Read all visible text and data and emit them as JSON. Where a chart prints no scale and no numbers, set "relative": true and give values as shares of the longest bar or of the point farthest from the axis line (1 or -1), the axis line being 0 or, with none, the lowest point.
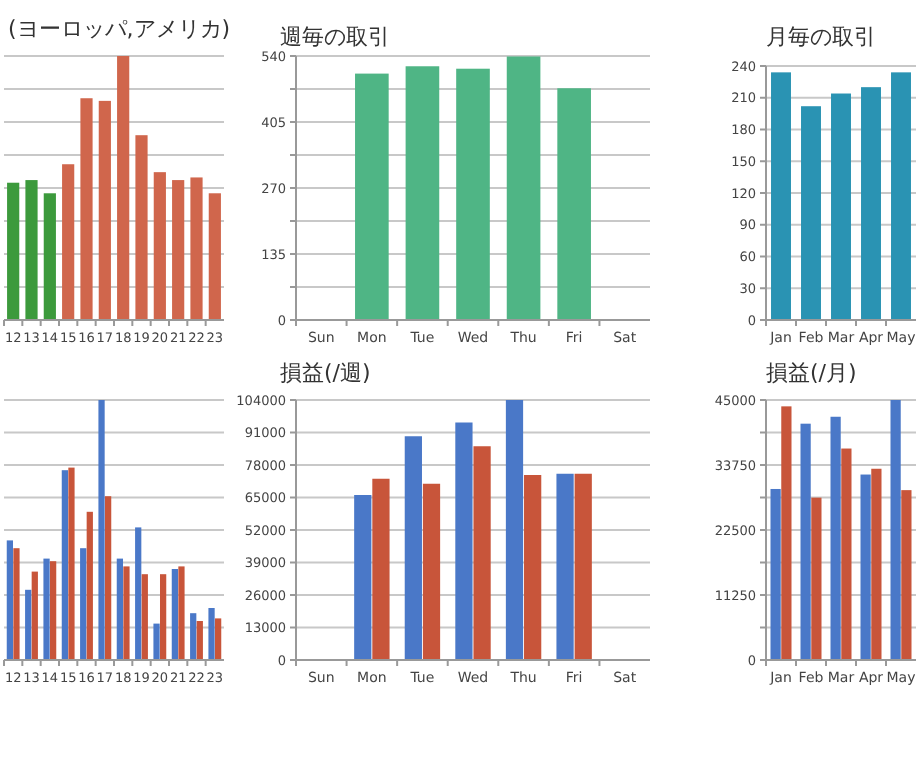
{
  "chart_data": [
    {
      "type": "bar",
      "title": "(ヨーロッパ,アメリカ)",
      "relative": true,
      "grid": true,
      "categories": [
        "12",
        "13",
        "14",
        "15",
        "16",
        "17",
        "18",
        "19",
        "20",
        "21",
        "22",
        "23"
      ],
      "values": [
        0.52,
        0.53,
        0.48,
        0.59,
        0.84,
        0.83,
        1,
        0.7,
        0.56,
        0.53,
        0.54,
        0.48
      ],
      "colors": [
        "#3c9a3c",
        "#3c9a3c",
        "#3c9a3c",
        "#d0664c",
        "#d0664c",
        "#d0664c",
        "#d0664c",
        "#d0664c",
        "#d0664c",
        "#d0664c",
        "#d0664c",
        "#d0664c"
      ]
    },
    {
      "type": "bar",
      "title": "週毎の取引",
      "grid": true,
      "categories": [
        "Sun",
        "Mon",
        "Tue",
        "Wed",
        "Thu",
        "Fri",
        "Sat"
      ],
      "values": [
        null,
        504,
        519,
        514,
        539,
        474,
        null
      ],
      "color": "#4fb585",
      "ylim": [
        0,
        540
      ],
      "yticks": [
        0,
        {
          "value": 67.5,
          "label": null
        },
        135,
        {
          "value": 202.5,
          "label": null
        },
        270,
        {
          "value": 337.5,
          "label": null
        },
        405,
        {
          "value": 472.5,
          "label": null
        },
        540
      ]
    },
    {
      "type": "bar",
      "title": "月毎の取引",
      "grid": true,
      "categories": [
        "Jan",
        "Feb",
        "Mar",
        "Apr",
        "May"
      ],
      "values": [
        234,
        202,
        214,
        220,
        234
      ],
      "color": "#2a93b3",
      "ylim": [
        0,
        240
      ],
      "yticks": [
        0,
        30,
        60,
        90,
        120,
        150,
        180,
        210,
        240
      ]
    },
    {
      "type": "bar",
      "relative": true,
      "grid": true,
      "categories": [
        "12",
        "13",
        "14",
        "15",
        "16",
        "17",
        "18",
        "19",
        "20",
        "21",
        "22",
        "23"
      ],
      "series": [
        {
          "color": "#4a78c8",
          "values": [
            0.46,
            0.27,
            0.39,
            0.73,
            0.43,
            1,
            0.39,
            0.51,
            0.14,
            0.35,
            0.18,
            0.2
          ]
        },
        {
          "color": "#c8553a",
          "values": [
            0.43,
            0.34,
            0.38,
            0.74,
            0.57,
            0.63,
            0.36,
            0.33,
            0.33,
            0.36,
            0.15,
            0.16
          ]
        }
      ]
    },
    {
      "type": "bar",
      "title": "損益(/週)",
      "grid": true,
      "categories": [
        "Sun",
        "Mon",
        "Tue",
        "Wed",
        "Thu",
        "Fri",
        "Sat"
      ],
      "ylim": [
        0,
        104000
      ],
      "yticks": [
        0,
        13000,
        26000,
        39000,
        52000,
        65000,
        78000,
        91000,
        104000
      ],
      "series": [
        {
          "color": "#4a78c8",
          "values": [
            null,
            66000,
            89500,
            95000,
            104000,
            74500,
            null
          ]
        },
        {
          "color": "#c8553a",
          "values": [
            null,
            72500,
            70500,
            85500,
            74000,
            74500,
            null
          ]
        }
      ]
    },
    {
      "type": "bar",
      "title": "損益(/月)",
      "grid": true,
      "categories": [
        "Jan",
        "Feb",
        "Mar",
        "Apr",
        "May"
      ],
      "ylim": [
        0,
        45000
      ],
      "yticks": [
        0,
        {
          "value": 5625,
          "label": null
        },
        11250,
        {
          "value": 16875,
          "label": null
        },
        22500,
        {
          "value": 28125,
          "label": null
        },
        33750,
        {
          "value": 39375,
          "label": null
        },
        45000
      ],
      "series": [
        {
          "color": "#4a78c8",
          "values": [
            29600,
            40900,
            42100,
            32100,
            45000
          ]
        },
        {
          "color": "#c8553a",
          "values": [
            43900,
            28100,
            36600,
            33100,
            29400
          ]
        }
      ]
    }
  ]
}
